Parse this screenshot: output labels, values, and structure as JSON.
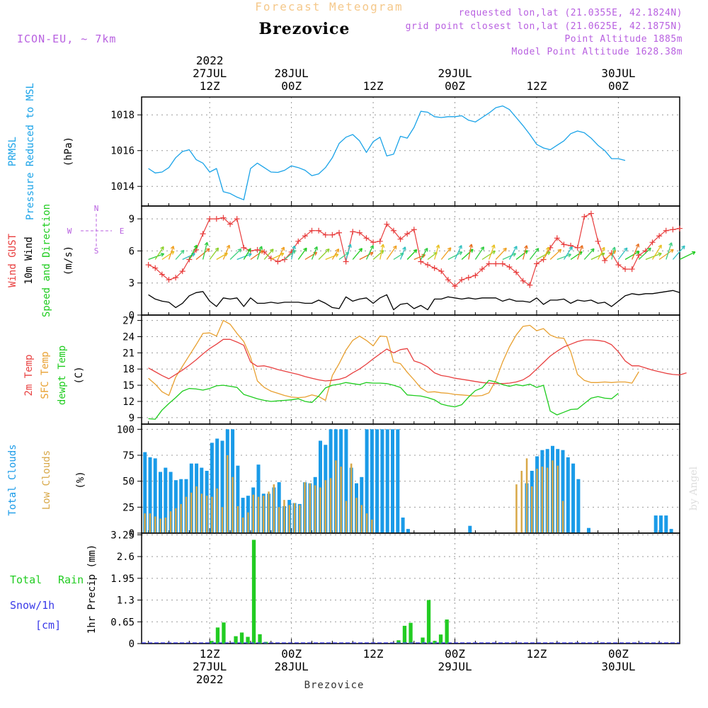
{
  "header": {
    "product": "Forecast Meteogram",
    "location": "Brezovice",
    "model": "ICON-EU, ~ 7km",
    "requested": "requested lon,lat (21.0355E, 42.1824N)",
    "gridpoint": "grid point closest lon,lat (21.0625E, 42.1875N)",
    "point_alt": "Point Altitude 1885m",
    "model_alt": "Model Point Altitude 1628.38m",
    "footer_location": "Brezovice",
    "watermark": "by Angel"
  },
  "time_axis": {
    "top": [
      {
        "lines": [
          "2022",
          "27JUL",
          "12Z"
        ],
        "hour": 12
      },
      {
        "lines": [
          "28JUL",
          "00Z"
        ],
        "hour": 24
      },
      {
        "lines": [
          "12Z"
        ],
        "hour": 36
      },
      {
        "lines": [
          "29JUL",
          "00Z"
        ],
        "hour": 48
      },
      {
        "lines": [
          "12Z"
        ],
        "hour": 60
      },
      {
        "lines": [
          "30JUL",
          "00Z"
        ],
        "hour": 72
      }
    ],
    "bottom": [
      {
        "lines": [
          "12Z",
          "27JUL",
          "2022"
        ],
        "hour": 12
      },
      {
        "lines": [
          "00Z",
          "28JUL"
        ],
        "hour": 24
      },
      {
        "lines": [
          "12Z"
        ],
        "hour": 36
      },
      {
        "lines": [
          "00Z",
          "29JUL"
        ],
        "hour": 48
      },
      {
        "lines": [
          "12Z"
        ],
        "hour": 60
      },
      {
        "lines": [
          "00Z",
          "30JUL"
        ],
        "hour": 72
      }
    ]
  },
  "panel_labels": {
    "pressure": {
      "l1": "PRMSL",
      "l2": "Pressure Reduced to MSL",
      "unit": "(hPa)"
    },
    "wind": {
      "l1": "Wind GUST",
      "l2": "10m Wind",
      "l3": "Speed and Direction",
      "unit": "(m/s)",
      "compass_n": "N",
      "compass_s": "S",
      "compass_w": "W",
      "compass_e": "E"
    },
    "temp": {
      "l1": "2m Temp",
      "l2": "SFC Temp",
      "l3": "dewpt Temp",
      "unit": "(C)"
    },
    "clouds": {
      "l1": "Total Clouds",
      "l2": "Low Clouds",
      "unit": "(%)"
    },
    "precip": {
      "l1": "Total",
      "l1b": "Rain",
      "l2": "Snow/1h",
      "l3": "[cm]",
      "unit": "1hr Precip (mm)"
    }
  },
  "colors": {
    "pressure": "#1aa3e8",
    "gust": "#e83c3c",
    "wind": "#000000",
    "t2m": "#e84040",
    "tsfc": "#e8a030",
    "dewpt": "#1ecc1e",
    "total_clouds": "#1a9be8",
    "low_clouds": "#d8a848",
    "rain": "#22cc22",
    "snow": "#3a3ae8",
    "title_orange": "#f5c88a",
    "info_purple": "#b860e0"
  },
  "chart_data": [
    {
      "type": "line",
      "title": "PRMSL Pressure Reduced to MSL",
      "ylabel": "(hPa)",
      "ylim": [
        1012.9,
        1019.0
      ],
      "yticks": [
        1014,
        1016,
        1018
      ],
      "x_start_hour": 3,
      "x_step_hours": 1,
      "series": [
        {
          "name": "PRMSL",
          "values": [
            1015.0,
            1014.75,
            1014.8,
            1015.05,
            1015.6,
            1015.95,
            1016.05,
            1015.5,
            1015.3,
            1014.8,
            1015.0,
            1013.7,
            1013.6,
            1013.4,
            1013.25,
            1015.0,
            1015.3,
            1015.05,
            1014.8,
            1014.78,
            1014.9,
            1015.15,
            1015.05,
            1014.9,
            1014.6,
            1014.7,
            1015.05,
            1015.6,
            1016.4,
            1016.75,
            1016.9,
            1016.55,
            1015.9,
            1016.5,
            1016.75,
            1015.7,
            1015.8,
            1016.8,
            1016.7,
            1017.3,
            1018.2,
            1018.15,
            1017.9,
            1017.85,
            1017.9,
            1017.9,
            1017.95,
            1017.7,
            1017.6,
            1017.85,
            1018.1,
            1018.4,
            1018.5,
            1018.3,
            1017.85,
            1017.4,
            1016.9,
            1016.35,
            1016.15,
            1016.05,
            1016.3,
            1016.55,
            1016.95,
            1017.1,
            1017.0,
            1016.7,
            1016.3,
            1016.0,
            1015.55,
            1015.55,
            1015.45
          ]
        }
      ]
    },
    {
      "type": "line",
      "title": "Wind GUST / 10m Wind Speed and Direction",
      "ylabel": "(m/s)",
      "ylim": [
        0,
        10.2
      ],
      "yticks": [
        0,
        3,
        6,
        9
      ],
      "x_start_hour": 3,
      "x_step_hours": 1,
      "series": [
        {
          "name": "Wind GUST",
          "values": [
            4.7,
            4.4,
            3.8,
            3.3,
            3.5,
            4.1,
            5.2,
            6.1,
            7.6,
            9.0,
            9.0,
            9.1,
            8.5,
            9.0,
            6.3,
            6.0,
            6.1,
            5.9,
            5.3,
            5.0,
            5.2,
            5.9,
            6.9,
            7.4,
            7.9,
            7.9,
            7.5,
            7.5,
            7.7,
            5.0,
            7.8,
            7.7,
            7.2,
            6.8,
            6.9,
            8.5,
            7.9,
            7.1,
            7.6,
            8.0,
            5.0,
            4.7,
            4.4,
            4.1,
            3.3,
            2.7,
            3.3,
            3.5,
            3.7,
            4.3,
            4.8,
            4.8,
            4.8,
            4.5,
            4.0,
            3.2,
            2.8,
            4.8,
            5.2,
            6.3,
            7.2,
            6.6,
            6.5,
            6.3,
            9.2,
            9.5,
            6.9,
            5.1,
            5.8,
            4.7,
            4.3,
            4.3,
            5.6,
            6.0,
            6.8,
            7.4,
            7.9,
            8.0,
            8.1
          ]
        },
        {
          "name": "10m Wind",
          "values": [
            1.9,
            1.5,
            1.3,
            1.2,
            0.7,
            1.1,
            1.8,
            2.1,
            2.2,
            1.3,
            0.8,
            1.6,
            1.5,
            1.6,
            0.8,
            1.6,
            1.1,
            1.1,
            1.2,
            1.1,
            1.2,
            1.2,
            1.2,
            1.1,
            1.1,
            1.4,
            1.1,
            0.7,
            0.6,
            1.7,
            1.3,
            1.5,
            1.6,
            1.1,
            1.6,
            1.9,
            0.5,
            1.0,
            1.1,
            0.6,
            0.9,
            0.5,
            1.5,
            1.5,
            1.7,
            1.6,
            1.5,
            1.6,
            1.5,
            1.6,
            1.6,
            1.6,
            1.3,
            1.5,
            1.3,
            1.3,
            1.2,
            1.6,
            1.0,
            1.4,
            1.4,
            1.5,
            1.1,
            1.4,
            1.3,
            1.4,
            1.1,
            1.2,
            0.8,
            1.3,
            1.8,
            2.0,
            1.9,
            2.0,
            2.0,
            2.1,
            2.2,
            2.3,
            2.1
          ]
        }
      ],
      "arrows": {
        "y_level": 5.2,
        "direction": "mixed, mostly from W/SW (arrows pointing E/NE)"
      }
    },
    {
      "type": "line",
      "title": "2m Temp / SFC Temp / dewpt Temp",
      "ylabel": "(C)",
      "ylim": [
        7.8,
        28.0
      ],
      "yticks": [
        9,
        12,
        15,
        18,
        21,
        24,
        27
      ],
      "x_start_hour": 3,
      "x_step_hours": 1,
      "series": [
        {
          "name": "2m Temp",
          "values": [
            18.2,
            17.5,
            16.8,
            16.2,
            17.0,
            17.8,
            18.7,
            19.7,
            20.8,
            21.8,
            22.6,
            23.5,
            23.5,
            23.0,
            22.4,
            19.3,
            18.5,
            18.6,
            18.3,
            17.9,
            17.6,
            17.3,
            17.0,
            16.6,
            16.3,
            16.0,
            15.8,
            15.9,
            16.1,
            16.5,
            17.3,
            18.0,
            18.9,
            19.9,
            20.8,
            21.7,
            21.0,
            21.6,
            21.8,
            19.5,
            19.1,
            18.4,
            17.3,
            16.8,
            16.6,
            16.3,
            16.1,
            15.9,
            15.7,
            15.5,
            15.4,
            15.3,
            15.3,
            15.4,
            15.6,
            16.0,
            16.8,
            18.0,
            19.2,
            20.4,
            21.3,
            22.1,
            22.6,
            23.1,
            23.4,
            23.4,
            23.3,
            23.1,
            22.5,
            21.2,
            19.5,
            18.6,
            18.6,
            18.2,
            17.8,
            17.5,
            17.2,
            17.0,
            16.9,
            17.3
          ]
        },
        {
          "name": "SFC Temp",
          "values": [
            16.3,
            15.2,
            13.8,
            13.1,
            16.5,
            18.5,
            20.5,
            22.5,
            24.6,
            24.7,
            24.1,
            27.0,
            26.3,
            24.6,
            23.1,
            20.2,
            15.8,
            14.6,
            13.9,
            13.5,
            13.1,
            12.8,
            12.7,
            12.8,
            13.2,
            12.9,
            12.2,
            16.8,
            19.0,
            21.5,
            23.3,
            24.1,
            23.3,
            22.3,
            24.1,
            24.0,
            19.3,
            19.0,
            17.4,
            16.0,
            14.5,
            13.7,
            13.8,
            13.6,
            13.5,
            13.3,
            13.2,
            13.1,
            13.0,
            13.1,
            13.6,
            15.9,
            19.3,
            22.1,
            24.3,
            25.9,
            26.1,
            25.1,
            25.5,
            24.3,
            23.8,
            23.7,
            21.2,
            17.0,
            15.9,
            15.5,
            15.5,
            15.6,
            15.5,
            15.6,
            15.6,
            15.4,
            17.5
          ]
        },
        {
          "name": "dewpt Temp",
          "values": [
            8.8,
            8.7,
            10.4,
            11.6,
            12.7,
            13.9,
            14.4,
            14.3,
            14.1,
            14.4,
            14.9,
            15.0,
            14.8,
            14.6,
            13.3,
            12.9,
            12.5,
            12.2,
            12.0,
            12.1,
            12.2,
            12.3,
            12.5,
            12.0,
            11.8,
            13.0,
            14.5,
            15.0,
            15.2,
            15.5,
            15.3,
            15.1,
            15.5,
            15.4,
            15.4,
            15.3,
            15.0,
            14.6,
            13.2,
            13.1,
            13.0,
            12.7,
            12.3,
            11.5,
            11.2,
            11.0,
            11.4,
            12.8,
            14.0,
            14.5,
            15.9,
            15.6,
            15.1,
            14.8,
            15.1,
            14.9,
            15.2,
            14.6,
            15.0,
            10.2,
            9.5,
            10.0,
            10.5,
            10.6,
            11.6,
            12.6,
            12.9,
            12.6,
            12.5,
            13.5
          ]
        }
      ]
    },
    {
      "type": "bar",
      "title": "Total Clouds / Low Clouds",
      "ylabel": "(%)",
      "ylim": [
        0,
        105
      ],
      "yticks": [
        0,
        25,
        50,
        75,
        100
      ],
      "x_start_hour": 3,
      "x_step_hours": 1,
      "series": [
        {
          "name": "Total Clouds",
          "values": [
            78,
            73,
            72,
            59,
            63,
            59,
            51,
            52,
            52,
            67,
            67,
            63,
            60,
            87,
            91,
            89,
            100,
            100,
            65,
            34,
            36,
            44,
            66,
            38,
            38,
            44,
            49,
            26,
            32,
            29,
            28,
            49,
            48,
            54,
            89,
            85,
            100,
            100,
            100,
            100,
            63,
            48,
            54,
            100,
            100,
            100,
            100,
            100,
            100,
            100,
            15,
            4,
            0,
            0,
            0,
            0,
            0,
            0,
            0,
            0,
            0,
            0,
            0,
            7,
            0,
            0,
            0,
            0,
            0,
            0,
            0,
            0,
            0,
            0,
            48,
            60,
            74,
            80,
            81,
            84,
            81,
            80,
            73,
            67,
            52,
            0,
            5,
            0,
            0,
            0,
            0,
            0,
            0,
            0,
            0,
            0,
            0,
            0,
            0,
            17,
            17,
            17,
            4,
            0
          ]
        },
        {
          "name": "Low Clouds",
          "values": [
            19,
            19,
            16,
            14,
            15,
            21,
            24,
            28,
            35,
            39,
            45,
            38,
            36,
            35,
            43,
            25,
            75,
            54,
            26,
            15,
            20,
            37,
            35,
            36,
            40,
            47,
            25,
            32,
            27,
            29,
            27,
            49,
            48,
            46,
            44,
            51,
            53,
            70,
            64,
            31,
            67,
            34,
            27,
            19,
            13,
            0,
            0,
            0,
            0,
            0,
            0,
            0,
            0,
            0,
            0,
            0,
            0,
            0,
            0,
            0,
            0,
            0,
            0,
            0,
            0,
            0,
            0,
            0,
            0,
            0,
            0,
            0,
            47,
            60,
            72,
            45,
            62,
            64,
            63,
            70,
            65,
            31,
            0,
            0,
            0,
            0,
            0,
            0,
            0,
            0,
            0,
            0,
            0,
            0,
            0,
            0,
            0,
            0,
            0,
            0,
            0,
            0,
            0,
            0,
            0
          ]
        }
      ]
    },
    {
      "type": "bar",
      "title": "1hr Precip (mm)",
      "ylabel": "1hr Precip (mm)",
      "ylim": [
        0,
        3.3
      ],
      "yticks": [
        0,
        0.65,
        1.3,
        1.95,
        2.6,
        3.25
      ],
      "ytick_labels": [
        "0",
        "0.65",
        "1.3",
        "1.95",
        "2.6",
        "3.25"
      ],
      "x_start_hour": 3,
      "x_step_hours": 1,
      "series": [
        {
          "name": "Total Rain",
          "values": [
            0,
            0,
            0,
            0,
            0,
            0,
            0,
            0,
            0,
            0,
            0,
            0.08,
            0.48,
            0.63,
            0,
            0.22,
            0.33,
            0.2,
            3.1,
            0.28,
            0.05,
            0,
            0,
            0,
            0,
            0,
            0,
            0,
            0,
            0,
            0,
            0,
            0,
            0,
            0,
            0,
            0,
            0,
            0,
            0,
            0,
            0,
            0.1,
            0.53,
            0.62,
            0,
            0.18,
            1.3,
            0.08,
            0.27,
            0.72,
            0,
            0,
            0,
            0,
            0,
            0,
            0,
            0,
            0,
            0,
            0,
            0,
            0,
            0,
            0,
            0,
            0,
            0,
            0,
            0,
            0,
            0,
            0,
            0,
            0,
            0,
            0,
            0,
            0,
            0,
            0,
            0,
            0,
            0,
            0,
            0,
            0,
            0
          ]
        },
        {
          "name": "Snow/1h",
          "values": []
        }
      ]
    }
  ]
}
